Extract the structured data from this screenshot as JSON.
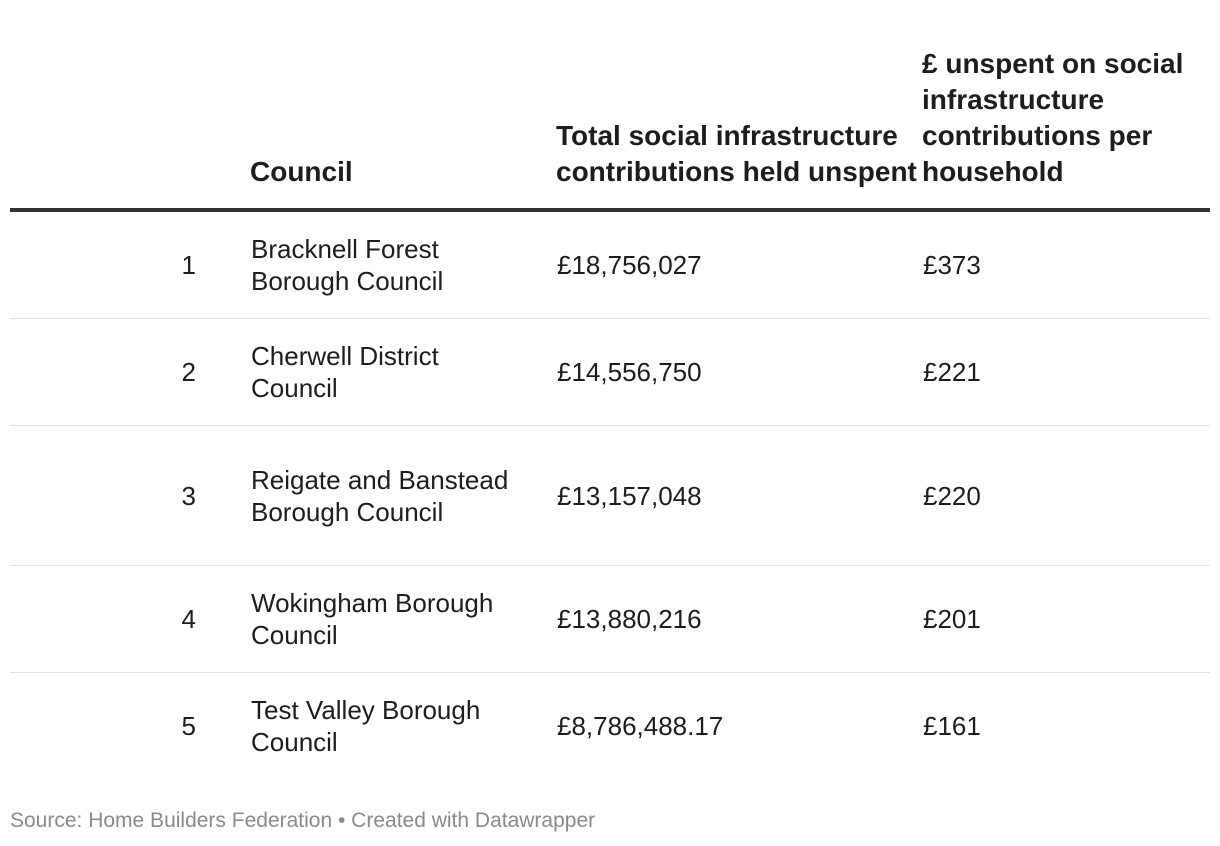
{
  "chart_data": {
    "type": "table",
    "columns": [
      "",
      "Council",
      "Total social infrastructure contributions held unspent",
      "£ unspent on social infrastructure contributions per household"
    ],
    "rows": [
      {
        "rank": "1",
        "council": "Bracknell Forest Borough Council",
        "total_unspent": "£18,756,027",
        "per_household": "£373"
      },
      {
        "rank": "2",
        "council": "Cherwell District Council",
        "total_unspent": "£14,556,750",
        "per_household": "£221"
      },
      {
        "rank": "3",
        "council": "Reigate and Banstead Borough Council",
        "total_unspent": "£13,157,048",
        "per_household": "£220"
      },
      {
        "rank": "4",
        "council": "Wokingham Borough Council",
        "total_unspent": "£13,880,216",
        "per_household": "£201"
      },
      {
        "rank": "5",
        "council": "Test Valley Borough Council",
        "total_unspent": "£8,786,488.17",
        "per_household": "£161"
      }
    ]
  },
  "footer": {
    "source": "Source: Home Builders Federation • Created with Datawrapper"
  }
}
